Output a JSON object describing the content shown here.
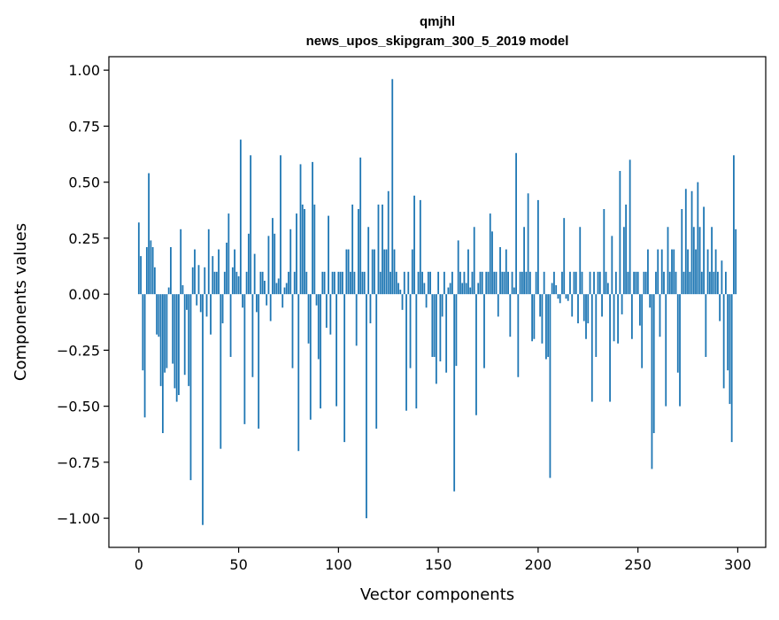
{
  "chart_data": {
    "type": "bar",
    "title": "qmjhl",
    "subtitle": "news_upos_skipgram_300_5_2019 model",
    "xlabel": "Vector components",
    "ylabel": "Components values",
    "xlim": [
      -15,
      314
    ],
    "ylim": [
      -1.13,
      1.06
    ],
    "xticks": [
      0,
      50,
      100,
      150,
      200,
      250,
      300
    ],
    "yticks": [
      1.0,
      0.75,
      0.5,
      0.25,
      0.0,
      -0.25,
      -0.5,
      -0.75,
      -1.0
    ],
    "ytick_labels": [
      "1.00",
      "0.75",
      "0.50",
      "0.25",
      "0.00",
      "−0.25",
      "−0.50",
      "−0.75",
      "−1.00"
    ],
    "grid": false,
    "color": "#1f77b4",
    "x": [
      0,
      1,
      2,
      3,
      4,
      5,
      6,
      7,
      8,
      9,
      10,
      11,
      12,
      13,
      14,
      15,
      16,
      17,
      18,
      19,
      20,
      21,
      22,
      23,
      24,
      25,
      26,
      27,
      28,
      29,
      30,
      31,
      32,
      33,
      34,
      35,
      36,
      37,
      38,
      39,
      40,
      41,
      42,
      43,
      44,
      45,
      46,
      47,
      48,
      49,
      50,
      51,
      52,
      53,
      54,
      55,
      56,
      57,
      58,
      59,
      60,
      61,
      62,
      63,
      64,
      65,
      66,
      67,
      68,
      69,
      70,
      71,
      72,
      73,
      74,
      75,
      76,
      77,
      78,
      79,
      80,
      81,
      82,
      83,
      84,
      85,
      86,
      87,
      88,
      89,
      90,
      91,
      92,
      93,
      94,
      95,
      96,
      97,
      98,
      99,
      100,
      101,
      102,
      103,
      104,
      105,
      106,
      107,
      108,
      109,
      110,
      111,
      112,
      113,
      114,
      115,
      116,
      117,
      118,
      119,
      120,
      121,
      122,
      123,
      124,
      125,
      126,
      127,
      128,
      129,
      130,
      131,
      132,
      133,
      134,
      135,
      136,
      137,
      138,
      139,
      140,
      141,
      142,
      143,
      144,
      145,
      146,
      147,
      148,
      149,
      150,
      151,
      152,
      153,
      154,
      155,
      156,
      157,
      158,
      159,
      160,
      161,
      162,
      163,
      164,
      165,
      166,
      167,
      168,
      169,
      170,
      171,
      172,
      173,
      174,
      175,
      176,
      177,
      178,
      179,
      180,
      181,
      182,
      183,
      184,
      185,
      186,
      187,
      188,
      189,
      190,
      191,
      192,
      193,
      194,
      195,
      196,
      197,
      198,
      199,
      200,
      201,
      202,
      203,
      204,
      205,
      206,
      207,
      208,
      209,
      210,
      211,
      212,
      213,
      214,
      215,
      216,
      217,
      218,
      219,
      220,
      221,
      222,
      223,
      224,
      225,
      226,
      227,
      228,
      229,
      230,
      231,
      232,
      233,
      234,
      235,
      236,
      237,
      238,
      239,
      240,
      241,
      242,
      243,
      244,
      245,
      246,
      247,
      248,
      249,
      250,
      251,
      252,
      253,
      254,
      255,
      256,
      257,
      258,
      259,
      260,
      261,
      262,
      263,
      264,
      265,
      266,
      267,
      268,
      269,
      270,
      271,
      272,
      273,
      274,
      275,
      276,
      277,
      278,
      279,
      280,
      281,
      282,
      283,
      284,
      285,
      286,
      287,
      288,
      289,
      290,
      291,
      292,
      293,
      294,
      295,
      296,
      297,
      298,
      299
    ],
    "values": [
      0.32,
      0.17,
      -0.34,
      -0.55,
      0.21,
      0.54,
      0.24,
      0.21,
      0.12,
      -0.18,
      -0.19,
      -0.41,
      -0.62,
      -0.35,
      -0.33,
      0.03,
      0.21,
      -0.31,
      -0.42,
      -0.48,
      -0.45,
      0.29,
      0.04,
      -0.36,
      -0.07,
      -0.41,
      -0.83,
      0.12,
      0.2,
      -0.05,
      0.13,
      -0.08,
      -1.03,
      0.12,
      -0.1,
      0.29,
      -0.18,
      0.17,
      0.1,
      0.1,
      0.2,
      -0.69,
      -0.13,
      0.1,
      0.23,
      0.36,
      -0.28,
      0.12,
      0.2,
      0.1,
      0.08,
      0.69,
      -0.06,
      -0.58,
      0.1,
      0.27,
      0.62,
      -0.37,
      0.18,
      -0.08,
      -0.6,
      0.1,
      0.1,
      0.06,
      -0.05,
      0.26,
      -0.12,
      0.34,
      0.27,
      0.05,
      0.07,
      0.62,
      -0.06,
      0.03,
      0.05,
      0.1,
      0.29,
      -0.33,
      0.1,
      0.36,
      -0.7,
      0.58,
      0.4,
      0.38,
      0.1,
      -0.22,
      -0.56,
      0.59,
      0.4,
      -0.05,
      -0.29,
      -0.51,
      0.1,
      0.1,
      -0.15,
      0.35,
      -0.18,
      0.1,
      0.1,
      -0.5,
      0.1,
      0.1,
      0.1,
      -0.66,
      0.2,
      0.2,
      0.1,
      0.4,
      0.1,
      -0.23,
      0.38,
      0.61,
      0.1,
      0.1,
      -1.0,
      0.3,
      -0.13,
      0.2,
      0.2,
      -0.6,
      0.4,
      0.1,
      0.4,
      0.2,
      0.2,
      0.46,
      0.1,
      0.96,
      0.2,
      0.1,
      0.05,
      0.02,
      -0.07,
      0.1,
      -0.52,
      0.1,
      -0.33,
      0.2,
      0.44,
      -0.51,
      0.1,
      0.42,
      0.1,
      0.05,
      -0.06,
      0.1,
      0.1,
      -0.28,
      -0.28,
      -0.4,
      0.1,
      -0.3,
      -0.1,
      0.1,
      -0.35,
      0.03,
      0.05,
      0.1,
      -0.88,
      -0.32,
      0.24,
      0.1,
      0.05,
      0.1,
      0.05,
      0.2,
      0.03,
      0.1,
      0.3,
      -0.54,
      0.05,
      0.1,
      0.1,
      -0.33,
      0.1,
      0.1,
      0.36,
      0.28,
      0.1,
      0.1,
      -0.1,
      0.21,
      0.1,
      0.1,
      0.2,
      0.1,
      -0.19,
      0.1,
      0.03,
      0.63,
      -0.37,
      0.1,
      0.1,
      0.3,
      0.1,
      0.45,
      0.1,
      -0.21,
      -0.2,
      0.1,
      0.42,
      -0.1,
      -0.22,
      0.1,
      -0.29,
      -0.28,
      -0.82,
      0.05,
      0.1,
      0.04,
      -0.02,
      -0.04,
      0.1,
      0.34,
      -0.02,
      -0.03,
      0.1,
      -0.1,
      0.1,
      0.1,
      -0.13,
      0.3,
      0.1,
      -0.12,
      -0.2,
      -0.13,
      0.1,
      -0.48,
      0.1,
      -0.28,
      0.1,
      0.1,
      -0.1,
      0.38,
      0.1,
      0.05,
      -0.48,
      0.26,
      -0.21,
      0.1,
      -0.22,
      0.55,
      -0.09,
      0.3,
      0.4,
      0.1,
      0.6,
      -0.2,
      0.1,
      0.1,
      0.1,
      -0.14,
      -0.33,
      0.1,
      0.1,
      0.2,
      -0.06,
      -0.78,
      -0.62,
      0.1,
      0.2,
      -0.19,
      0.2,
      0.1,
      -0.5,
      0.3,
      0.1,
      0.2,
      0.2,
      0.1,
      -0.35,
      -0.5,
      0.38,
      0.1,
      0.47,
      0.2,
      0.1,
      0.46,
      0.3,
      0.2,
      0.5,
      0.3,
      0.1,
      0.39,
      -0.28,
      0.2,
      0.1,
      0.3,
      0.1,
      0.2,
      0.1,
      -0.12,
      0.15,
      -0.42,
      0.1,
      -0.34,
      -0.49,
      -0.66,
      0.62,
      0.29
    ]
  }
}
